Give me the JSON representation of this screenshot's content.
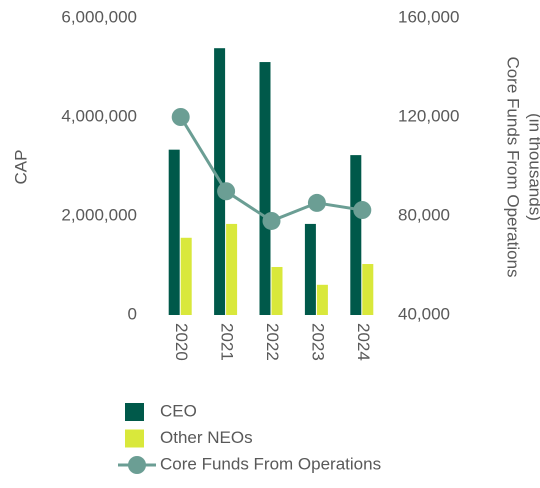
{
  "chart_data": {
    "type": "bar",
    "categories": [
      "2020",
      "2021",
      "2022",
      "2023",
      "2024"
    ],
    "ylabel": "CAP",
    "y2label": [
      "Core Funds From Operations",
      "(in thousands)"
    ],
    "ylim": [
      0,
      6000000
    ],
    "yticks": [
      0,
      {
        "value": 2000000,
        "label": "2,000,000"
      },
      {
        "value": 4000000,
        "label": "4,000,000"
      },
      {
        "value": 6000000,
        "label": "6,000,000"
      }
    ],
    "y2lim": [
      40000,
      160000
    ],
    "y2ticks": [
      {
        "value": 40000,
        "label": "40,000"
      },
      {
        "value": 80000,
        "label": "80,000"
      },
      {
        "value": 120000,
        "label": "120,000"
      },
      {
        "value": 160000,
        "label": "160,000"
      }
    ],
    "series": [
      {
        "name": "CEO",
        "color": "#00594a",
        "values": [
          3340000,
          5390000,
          5110000,
          1840000,
          3230000
        ]
      },
      {
        "name": "Other NEOs",
        "color": "#d9e83b",
        "values": [
          1560000,
          1840000,
          970000,
          610000,
          1030000
        ]
      },
      {
        "name": "Core Funds From Operations",
        "color": "#6b9e94",
        "type": "line",
        "axis": "y2",
        "values": [
          120000,
          90000,
          78000,
          85300,
          82400
        ]
      }
    ]
  }
}
